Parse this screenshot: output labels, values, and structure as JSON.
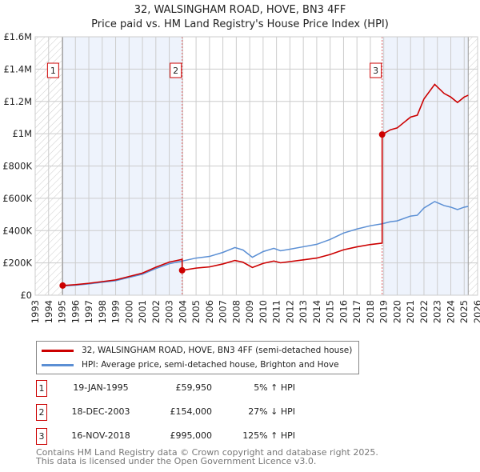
{
  "title": "32, WALSINGHAM ROAD, HOVE, BN3 4FF",
  "subtitle": "Price paid vs. HM Land Registry's House Price Index (HPI)",
  "chart_data": {
    "type": "line",
    "xlim": [
      1993,
      2026
    ],
    "ylim": [
      0,
      1600000
    ],
    "x_ticks": [
      "1993",
      "1994",
      "1995",
      "1996",
      "1997",
      "1998",
      "1999",
      "2000",
      "2001",
      "2002",
      "2003",
      "2004",
      "2005",
      "2006",
      "2007",
      "2008",
      "2009",
      "2010",
      "2011",
      "2012",
      "2013",
      "2014",
      "2015",
      "2016",
      "2017",
      "2018",
      "2019",
      "2020",
      "2021",
      "2022",
      "2023",
      "2024",
      "2025",
      "2026"
    ],
    "y_ticks": [
      {
        "v": 0,
        "label": "£0"
      },
      {
        "v": 200000,
        "label": "£200K"
      },
      {
        "v": 400000,
        "label": "£400K"
      },
      {
        "v": 600000,
        "label": "£600K"
      },
      {
        "v": 800000,
        "label": "£800K"
      },
      {
        "v": 1000000,
        "label": "£1M"
      },
      {
        "v": 1200000,
        "label": "£1.2M"
      },
      {
        "v": 1400000,
        "label": "£1.4M"
      },
      {
        "v": 1600000,
        "label": "£1.6M"
      }
    ],
    "hatched_before": 1995.05,
    "hatched_after": 2025.3,
    "colors": {
      "property": "#cc0000",
      "hpi": "#5b8fd4",
      "shade": "#eef3fc"
    },
    "hpi_series": {
      "name": "HPI: Average price, semi-detached house, Brighton and Hove",
      "x": [
        1995.05,
        1996,
        1997,
        1998,
        1999,
        2000,
        2001,
        2002,
        2003,
        2003.96,
        2005,
        2006,
        2007,
        2007.9,
        2008.5,
        2009.2,
        2010,
        2010.8,
        2011.3,
        2012,
        2013,
        2014,
        2015,
        2016,
        2017,
        2018,
        2018.88,
        2019.5,
        2020,
        2021,
        2021.5,
        2022,
        2022.8,
        2023.5,
        2024,
        2024.5,
        2025,
        2025.3
      ],
      "y": [
        57000,
        62000,
        70000,
        80000,
        90000,
        110000,
        130000,
        165000,
        195000,
        211000,
        230000,
        240000,
        265000,
        295000,
        280000,
        235000,
        270000,
        290000,
        275000,
        285000,
        300000,
        315000,
        345000,
        385000,
        410000,
        430000,
        442000,
        455000,
        460000,
        490000,
        495000,
        540000,
        580000,
        555000,
        545000,
        530000,
        545000,
        550000
      ]
    },
    "property_series": {
      "name": "32, WALSINGHAM ROAD, HOVE, BN3 4FF (semi-detached house)"
    },
    "sales": [
      {
        "n": "1",
        "x": 1995.05,
        "price": 59950,
        "date": "19-JAN-1995",
        "price_label": "£59,950",
        "hpi_label": "5% ↑ HPI"
      },
      {
        "n": "2",
        "x": 2003.96,
        "price": 154000,
        "date": "18-DEC-2003",
        "price_label": "£154,000",
        "hpi_label": "27% ↓ HPI"
      },
      {
        "n": "3",
        "x": 2018.88,
        "price": 995000,
        "date": "16-NOV-2018",
        "price_label": "£995,000",
        "hpi_label": "125% ↑ HPI"
      }
    ]
  },
  "footer": [
    "Contains HM Land Registry data © Crown copyright and database right 2025.",
    "This data is licensed under the Open Government Licence v3.0."
  ]
}
